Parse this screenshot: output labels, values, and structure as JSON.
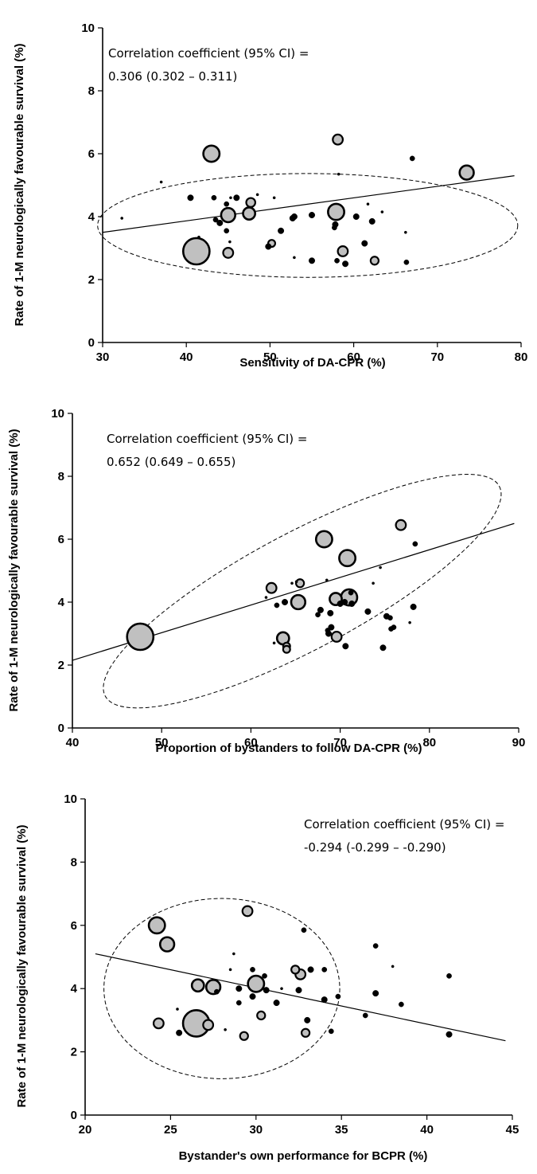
{
  "chart_data": [
    {
      "type": "scatter",
      "title": "",
      "xlabel": "Sensitivity of DA-CPR (%)",
      "ylabel": "Rate of 1-M neurologically favourable survival (%)",
      "xlim": [
        30,
        80
      ],
      "ylim": [
        0,
        10
      ],
      "xticks": [
        "30",
        "40",
        "50",
        "60",
        "70",
        "80"
      ],
      "yticks": [
        "0",
        "2",
        "4",
        "6",
        "8",
        "10"
      ],
      "annotation": [
        "Correlation coefficient (95% CI) =",
        "0.306 (0.302 – 0.311)"
      ],
      "regression": [
        [
          30,
          3.5
        ],
        [
          79.2,
          5.3
        ]
      ],
      "ellipse": {
        "center": [
          54.5,
          3.72
        ],
        "rx": 25.1,
        "ry": 1.65
      },
      "points": [
        [
          32.3,
          3.95,
          1
        ],
        [
          37.0,
          5.1,
          1
        ],
        [
          40.5,
          4.6,
          2
        ],
        [
          41.2,
          2.9,
          12
        ],
        [
          41.5,
          3.35,
          1
        ],
        [
          43.0,
          6.0,
          7
        ],
        [
          43.3,
          4.6,
          1.5
        ],
        [
          43.5,
          3.9,
          1.5
        ],
        [
          44.0,
          3.8,
          2
        ],
        [
          44.8,
          4.4,
          1.5
        ],
        [
          44.8,
          3.55,
          1.5
        ],
        [
          45.0,
          4.05,
          6
        ],
        [
          45.0,
          2.85,
          4
        ],
        [
          45.2,
          3.2,
          1
        ],
        [
          45.3,
          4.6,
          1
        ],
        [
          46.0,
          4.6,
          2
        ],
        [
          47.5,
          4.1,
          5
        ],
        [
          47.7,
          4.45,
          3.5
        ],
        [
          48.5,
          4.7,
          1
        ],
        [
          49.8,
          3.05,
          2
        ],
        [
          50.2,
          3.15,
          2.5
        ],
        [
          50.5,
          4.6,
          1
        ],
        [
          51.3,
          3.55,
          2
        ],
        [
          52.7,
          3.95,
          2
        ],
        [
          52.9,
          4.0,
          2
        ],
        [
          52.9,
          2.7,
          1
        ],
        [
          55.0,
          4.05,
          2
        ],
        [
          55.0,
          2.6,
          2
        ],
        [
          57.7,
          3.65,
          1.5
        ],
        [
          57.9,
          4.15,
          7
        ],
        [
          57.8,
          3.75,
          2
        ],
        [
          58.0,
          2.6,
          1.5
        ],
        [
          58.1,
          6.45,
          4
        ],
        [
          58.2,
          5.35,
          1
        ],
        [
          58.7,
          2.9,
          4
        ],
        [
          59.0,
          2.5,
          2
        ],
        [
          60.3,
          4.0,
          2
        ],
        [
          61.3,
          3.15,
          2
        ],
        [
          61.7,
          4.4,
          1
        ],
        [
          62.2,
          3.85,
          2
        ],
        [
          62.5,
          2.6,
          3
        ],
        [
          63.4,
          4.15,
          1
        ],
        [
          66.2,
          3.5,
          1
        ],
        [
          66.3,
          2.55,
          1.5
        ],
        [
          67.0,
          5.85,
          1.5
        ],
        [
          73.5,
          5.4,
          6
        ]
      ]
    },
    {
      "type": "scatter",
      "title": "",
      "xlabel": "Proportion of bystanders to follow DA-CPR (%)",
      "ylabel": "Rate of 1-M neurologically favourable survival (%)",
      "xlim": [
        40,
        90
      ],
      "ylim": [
        0,
        10
      ],
      "xticks": [
        "40",
        "50",
        "60",
        "70",
        "80",
        "90"
      ],
      "yticks": [
        "0",
        "2",
        "4",
        "6",
        "8",
        "10"
      ],
      "annotation": [
        "Correlation coefficient (95% CI) =",
        "0.652 (0.649 – 0.655)"
      ],
      "regression": [
        [
          40,
          2.15
        ],
        [
          89.5,
          6.5
        ]
      ],
      "ellipse": {
        "center": [
          65.75,
          4.35
        ],
        "rx": 25.0,
        "ry": 1.85,
        "angle": 28
      },
      "points": [
        [
          47.6,
          2.9,
          12
        ],
        [
          61.7,
          4.15,
          1
        ],
        [
          62.3,
          4.45,
          4
        ],
        [
          62.6,
          2.7,
          1
        ],
        [
          62.9,
          3.9,
          1.5
        ],
        [
          63.6,
          2.85,
          5
        ],
        [
          63.8,
          4.0,
          2
        ],
        [
          64.0,
          2.6,
          2.5
        ],
        [
          64.0,
          2.5,
          2.5
        ],
        [
          64.6,
          4.6,
          1
        ],
        [
          65.1,
          4.65,
          1
        ],
        [
          65.3,
          4.0,
          6
        ],
        [
          65.5,
          4.6,
          3
        ],
        [
          67.5,
          3.6,
          1.5
        ],
        [
          67.8,
          3.75,
          2
        ],
        [
          68.2,
          6.0,
          7
        ],
        [
          68.5,
          4.7,
          1
        ],
        [
          68.6,
          3.1,
          1.5
        ],
        [
          68.7,
          3.0,
          2
        ],
        [
          69.0,
          3.2,
          2
        ],
        [
          68.9,
          3.65,
          2
        ],
        [
          69.5,
          4.1,
          5
        ],
        [
          69.6,
          2.9,
          4
        ],
        [
          70.0,
          3.95,
          2
        ],
        [
          70.5,
          4.0,
          2
        ],
        [
          70.6,
          2.6,
          2
        ],
        [
          70.8,
          5.4,
          7
        ],
        [
          71.0,
          4.15,
          7
        ],
        [
          71.3,
          3.95,
          2
        ],
        [
          71.2,
          4.3,
          1.5
        ],
        [
          73.1,
          3.7,
          2
        ],
        [
          73.7,
          4.6,
          1
        ],
        [
          74.5,
          5.1,
          1
        ],
        [
          74.8,
          2.55,
          2
        ],
        [
          75.2,
          3.55,
          2
        ],
        [
          75.6,
          3.5,
          1.5
        ],
        [
          75.7,
          3.15,
          1.5
        ],
        [
          76.0,
          3.2,
          1.5
        ],
        [
          76.8,
          6.45,
          4
        ],
        [
          77.8,
          3.35,
          1
        ],
        [
          78.2,
          3.85,
          2
        ],
        [
          78.4,
          5.85,
          1.5
        ]
      ]
    },
    {
      "type": "scatter",
      "title": "",
      "xlabel": "Bystander's own performance for BCPR (%)",
      "ylabel": "Rate of 1-M neurologically favourable survival (%)",
      "xlim": [
        20,
        45
      ],
      "ylim": [
        0,
        10
      ],
      "xticks": [
        "20",
        "25",
        "30",
        "35",
        "40",
        "45"
      ],
      "yticks": [
        "0",
        "2",
        "4",
        "6",
        "8",
        "10"
      ],
      "annotation": [
        "Correlation coefficient (95% CI) =",
        "-0.294 (-0.299 – -0.290)"
      ],
      "regression": [
        [
          20.6,
          5.1
        ],
        [
          44.6,
          2.35
        ]
      ],
      "ellipse": {
        "center": [
          28.0,
          4.0
        ],
        "rx": 6.9,
        "ry": 2.85
      },
      "points": [
        [
          24.2,
          6.0,
          7
        ],
        [
          24.3,
          2.9,
          4
        ],
        [
          24.8,
          5.4,
          6
        ],
        [
          25.4,
          3.35,
          1
        ],
        [
          25.5,
          2.6,
          2
        ],
        [
          26.5,
          2.9,
          12
        ],
        [
          26.6,
          4.1,
          5
        ],
        [
          27.2,
          2.85,
          4
        ],
        [
          27.5,
          4.05,
          6
        ],
        [
          27.7,
          3.9,
          1.5
        ],
        [
          28.2,
          2.7,
          1
        ],
        [
          28.5,
          4.6,
          1
        ],
        [
          28.7,
          5.1,
          1
        ],
        [
          29.0,
          4.0,
          2
        ],
        [
          29.0,
          3.55,
          1.5
        ],
        [
          29.3,
          2.5,
          3
        ],
        [
          29.5,
          6.45,
          4
        ],
        [
          29.8,
          4.6,
          1.5
        ],
        [
          29.8,
          3.75,
          2
        ],
        [
          30.0,
          4.15,
          7
        ],
        [
          30.3,
          3.15,
          3
        ],
        [
          30.5,
          4.4,
          1.5
        ],
        [
          30.6,
          3.95,
          2
        ],
        [
          31.2,
          3.55,
          2
        ],
        [
          31.5,
          4.0,
          1
        ],
        [
          32.3,
          4.6,
          3
        ],
        [
          32.5,
          3.95,
          2
        ],
        [
          32.6,
          4.45,
          4
        ],
        [
          32.8,
          5.85,
          1.5
        ],
        [
          32.9,
          2.6,
          3
        ],
        [
          33.0,
          3.0,
          2
        ],
        [
          33.2,
          4.6,
          2
        ],
        [
          34.0,
          4.6,
          1.5
        ],
        [
          34.0,
          3.65,
          2
        ],
        [
          34.4,
          2.65,
          1.5
        ],
        [
          34.8,
          3.75,
          1.5
        ],
        [
          36.4,
          3.15,
          1.5
        ],
        [
          37.0,
          5.35,
          1.5
        ],
        [
          37.0,
          3.85,
          2
        ],
        [
          38.0,
          4.7,
          1
        ],
        [
          38.5,
          3.5,
          1.5
        ],
        [
          41.3,
          4.4,
          1.5
        ],
        [
          41.3,
          2.55,
          2
        ]
      ]
    }
  ]
}
